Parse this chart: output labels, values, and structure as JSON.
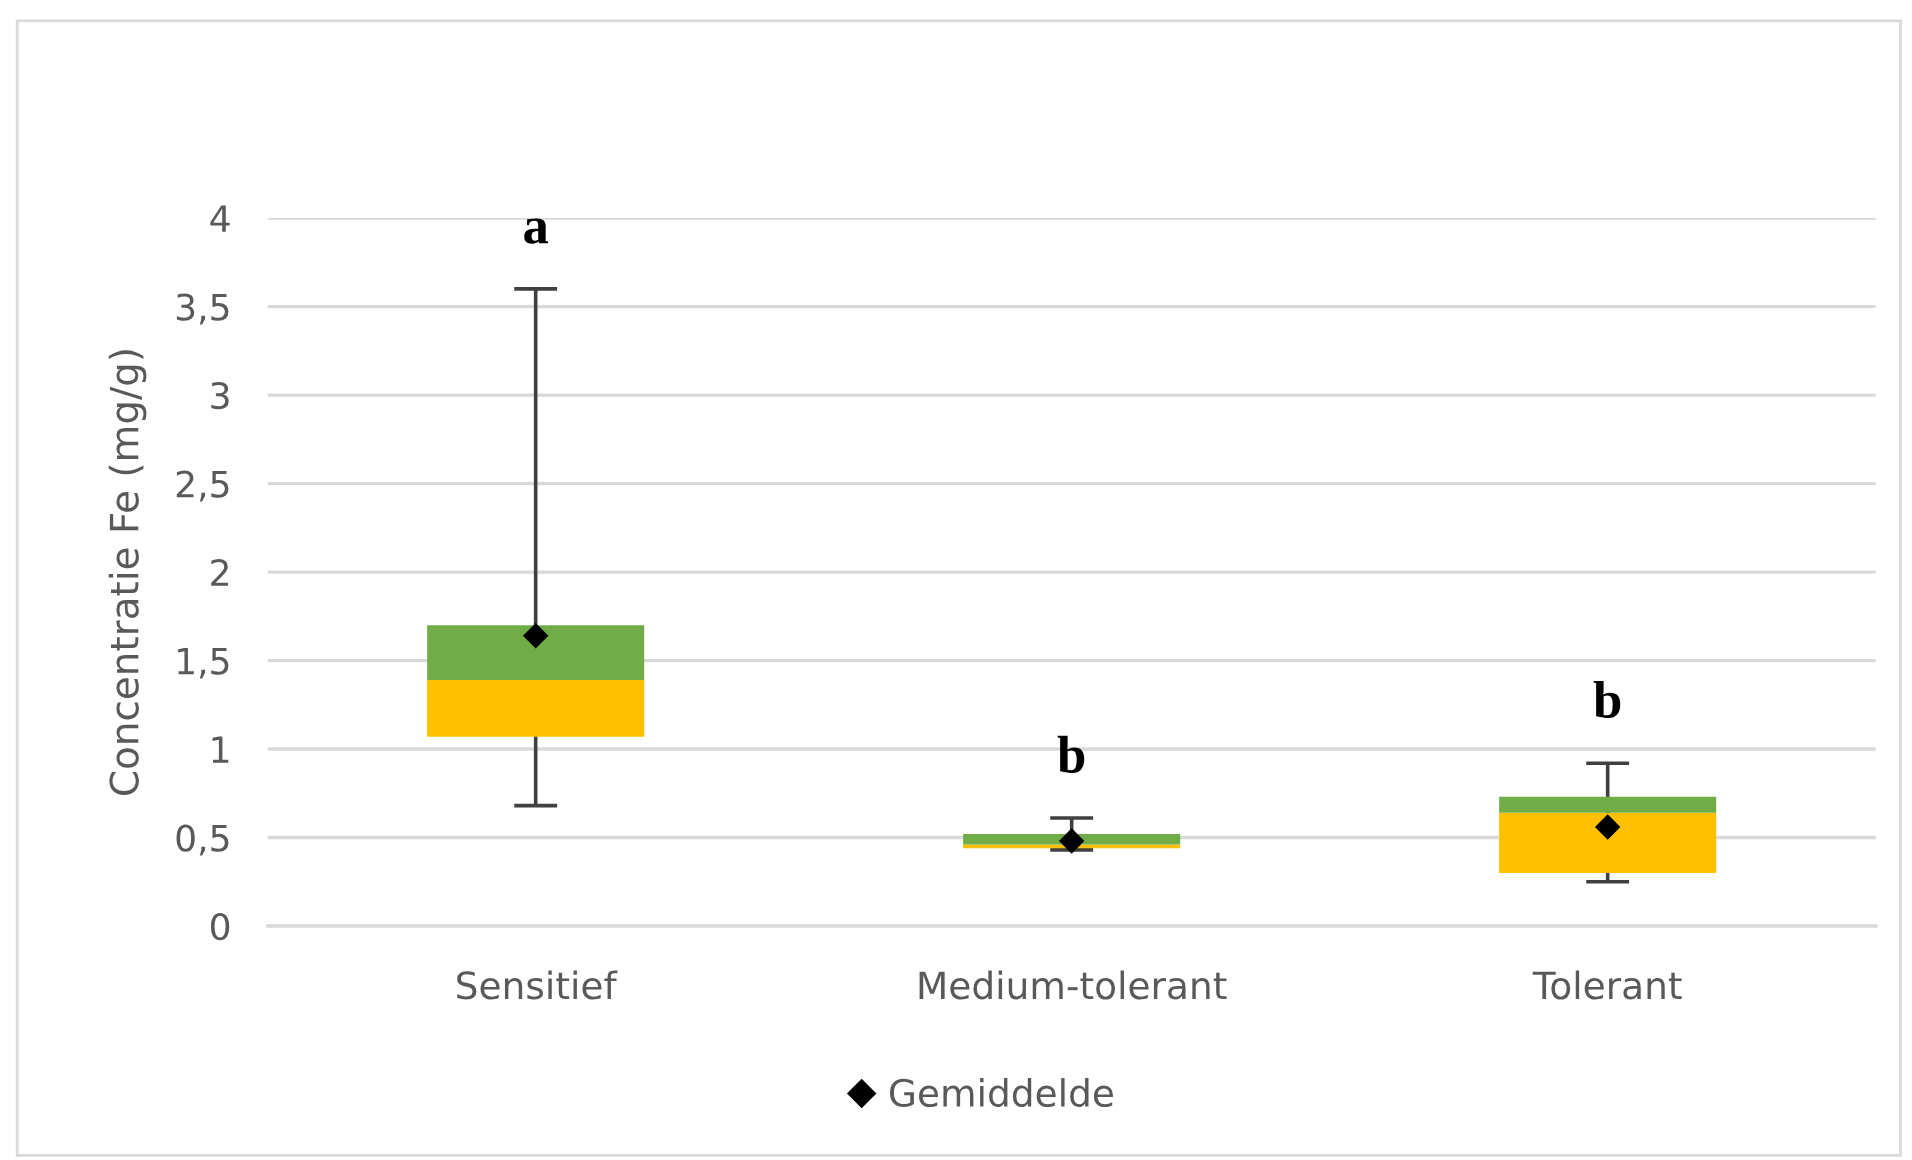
{
  "chart_data": {
    "type": "box",
    "ylabel": "Concentratie Fe (mg/g)",
    "categories": [
      "Sensitief",
      "Medium-tolerant",
      "Tolerant"
    ],
    "boxes": [
      {
        "low": 0.68,
        "q1": 1.07,
        "median": 1.39,
        "q3": 1.7,
        "high": 3.6
      },
      {
        "low": 0.43,
        "q1": 0.44,
        "median": 0.46,
        "q3": 0.52,
        "high": 0.61
      },
      {
        "low": 0.25,
        "q1": 0.3,
        "median": 0.64,
        "q3": 0.73,
        "high": 0.92
      }
    ],
    "colors": [
      [
        "#ffc000",
        "#70ad47"
      ],
      [
        "#ffc000",
        "#70ad47"
      ],
      [
        "#ffc000",
        "#70ad47"
      ]
    ],
    "series": [
      {
        "name": "Gemiddelde",
        "type": "scatter",
        "x": [
          "Sensitief",
          "Medium-tolerant",
          "Tolerant"
        ],
        "values": [
          1.64,
          0.48,
          0.56
        ],
        "color": "#000000",
        "marker": "diamond"
      }
    ],
    "ylim": [
      0,
      4
    ],
    "yticks": [
      0,
      {
        "value": 0.5,
        "label": "0,5"
      },
      1,
      {
        "value": 1.5,
        "label": "1,5"
      },
      2,
      {
        "value": 2.5,
        "label": "2,5"
      },
      3,
      {
        "value": 3.5,
        "label": "3,5"
      },
      4
    ],
    "grid": "y",
    "legend": "bottom",
    "annotations": [
      "a",
      "b",
      "b"
    ]
  }
}
